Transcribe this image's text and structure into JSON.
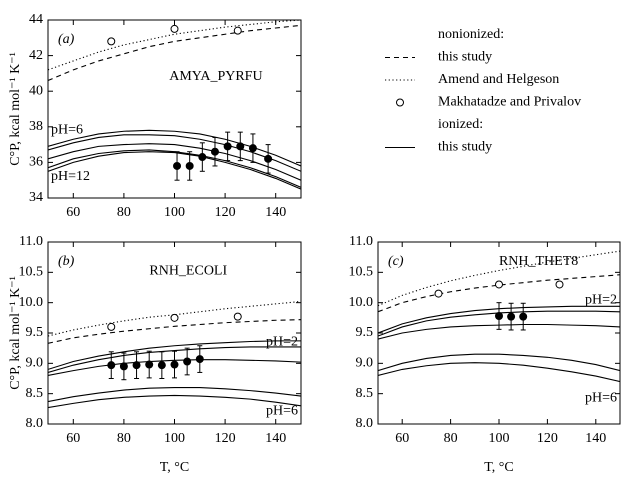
{
  "chart_data": [
    {
      "type": "line",
      "panel_label": "(a)",
      "annotations": [
        "AMYA_PYRFU",
        "pH=6",
        "pH=12"
      ],
      "ylabel": "C°P, kcal mol⁻¹ K⁻¹",
      "xlim": [
        50,
        150
      ],
      "xticks": [
        60,
        80,
        100,
        120,
        140
      ],
      "ylim": [
        34,
        44
      ],
      "yticks": [
        34,
        36,
        38,
        40,
        42,
        44
      ],
      "series": [
        {
          "style": "dotted",
          "x": [
            50,
            60,
            70,
            80,
            90,
            100,
            110,
            120,
            130,
            140,
            150
          ],
          "values": [
            41.2,
            41.7,
            42.2,
            42.6,
            42.9,
            43.2,
            43.4,
            43.6,
            43.75,
            43.9,
            44.0
          ]
        },
        {
          "style": "dashed",
          "x": [
            50,
            60,
            70,
            80,
            90,
            100,
            110,
            120,
            130,
            140,
            150
          ],
          "values": [
            40.6,
            41.2,
            41.7,
            42.1,
            42.5,
            42.8,
            43.0,
            43.2,
            43.4,
            43.55,
            43.7
          ]
        },
        {
          "style": "open",
          "x": [
            75,
            100,
            125
          ],
          "values": [
            42.8,
            43.5,
            43.4
          ]
        },
        {
          "style": "solid",
          "x": [
            50,
            60,
            70,
            80,
            90,
            100,
            110,
            120,
            130,
            140,
            150
          ],
          "values": [
            36.9,
            37.3,
            37.6,
            37.75,
            37.8,
            37.75,
            37.6,
            37.3,
            36.9,
            36.4,
            35.8
          ]
        },
        {
          "style": "solid",
          "x": [
            50,
            60,
            70,
            80,
            90,
            100,
            110,
            120,
            130,
            140,
            150
          ],
          "values": [
            36.7,
            37.1,
            37.4,
            37.55,
            37.55,
            37.5,
            37.3,
            37.0,
            36.6,
            36.1,
            35.5
          ]
        },
        {
          "style": "solid",
          "x": [
            50,
            60,
            70,
            80,
            90,
            100,
            110,
            120,
            130,
            140,
            150
          ],
          "values": [
            36.2,
            36.6,
            36.9,
            37.0,
            37.05,
            37.0,
            36.8,
            36.5,
            36.1,
            35.6,
            35.0
          ]
        },
        {
          "style": "solid",
          "x": [
            50,
            60,
            70,
            80,
            90,
            100,
            110,
            120,
            130,
            140,
            150
          ],
          "values": [
            35.7,
            36.2,
            36.5,
            36.65,
            36.7,
            36.6,
            36.4,
            36.1,
            35.7,
            35.2,
            34.6
          ]
        },
        {
          "style": "solid",
          "x": [
            50,
            60,
            70,
            80,
            90,
            100,
            110,
            120,
            130,
            140,
            150
          ],
          "values": [
            35.5,
            36.0,
            36.35,
            36.55,
            36.6,
            36.55,
            36.35,
            36.0,
            35.6,
            35.1,
            34.5
          ]
        },
        {
          "style": "filled",
          "x": [
            101,
            106,
            111,
            116,
            121,
            126,
            131,
            137
          ],
          "values": [
            35.8,
            35.8,
            36.3,
            36.6,
            36.9,
            36.9,
            36.8,
            36.2
          ],
          "errors": [
            0.8,
            0.8,
            0.8,
            0.8,
            0.8,
            0.8,
            0.8,
            0.8
          ]
        }
      ]
    },
    {
      "type": "line",
      "panel_label": "(b)",
      "annotations": [
        "RNH_ECOLI",
        "pH=2",
        "pH=6"
      ],
      "ylabel": "C°P, kcal mol⁻¹ K⁻¹",
      "xlabel": "T, °C",
      "xlim": [
        50,
        150
      ],
      "xticks": [
        60,
        80,
        100,
        120,
        140
      ],
      "ylim": [
        8,
        11
      ],
      "yticks": [
        {
          "value": 8,
          "label": "8.0"
        },
        {
          "value": 8.5,
          "label": "8.5"
        },
        {
          "value": 9,
          "label": "9.0"
        },
        {
          "value": 9.5,
          "label": "9.5"
        },
        {
          "value": 10,
          "label": "10.0"
        },
        {
          "value": 10.5,
          "label": "10.5"
        },
        {
          "value": 11,
          "label": "11.0"
        }
      ],
      "series": [
        {
          "style": "dotted",
          "x": [
            50,
            60,
            70,
            80,
            90,
            100,
            110,
            120,
            130,
            140,
            150
          ],
          "values": [
            9.45,
            9.55,
            9.63,
            9.7,
            9.76,
            9.8,
            9.85,
            9.9,
            9.94,
            9.98,
            10.02
          ]
        },
        {
          "style": "dashed",
          "x": [
            50,
            60,
            70,
            80,
            90,
            100,
            110,
            120,
            130,
            140,
            150
          ],
          "values": [
            9.33,
            9.42,
            9.48,
            9.53,
            9.57,
            9.61,
            9.64,
            9.67,
            9.69,
            9.71,
            9.72
          ]
        },
        {
          "style": "open",
          "x": [
            75,
            100,
            125
          ],
          "values": [
            9.6,
            9.75,
            9.77
          ]
        },
        {
          "style": "solid",
          "x": [
            50,
            60,
            70,
            80,
            90,
            100,
            110,
            120,
            130,
            140,
            150
          ],
          "values": [
            8.9,
            9.03,
            9.12,
            9.19,
            9.25,
            9.29,
            9.32,
            9.34,
            9.36,
            9.37,
            9.37
          ]
        },
        {
          "style": "solid",
          "x": [
            50,
            60,
            70,
            80,
            90,
            100,
            110,
            120,
            130,
            140,
            150
          ],
          "values": [
            8.85,
            8.97,
            9.06,
            9.13,
            9.18,
            9.21,
            9.24,
            9.26,
            9.27,
            9.27,
            9.27
          ]
        },
        {
          "style": "solid",
          "x": [
            50,
            60,
            70,
            80,
            90,
            100,
            110,
            120,
            130,
            140,
            150
          ],
          "values": [
            8.8,
            8.88,
            8.95,
            9.0,
            9.03,
            9.05,
            9.06,
            9.06,
            9.05,
            9.04,
            9.02
          ]
        },
        {
          "style": "solid",
          "x": [
            50,
            60,
            70,
            80,
            90,
            100,
            110,
            120,
            130,
            140,
            150
          ],
          "values": [
            8.37,
            8.45,
            8.51,
            8.56,
            8.59,
            8.6,
            8.6,
            8.58,
            8.55,
            8.51,
            8.46
          ]
        },
        {
          "style": "solid",
          "x": [
            50,
            60,
            70,
            80,
            90,
            100,
            110,
            120,
            130,
            140,
            150
          ],
          "values": [
            8.27,
            8.34,
            8.4,
            8.44,
            8.46,
            8.47,
            8.46,
            8.44,
            8.41,
            8.36,
            8.3
          ]
        },
        {
          "style": "filled",
          "x": [
            75,
            80,
            85,
            90,
            95,
            100,
            105,
            110
          ],
          "values": [
            8.97,
            8.95,
            8.97,
            8.98,
            8.97,
            8.98,
            9.03,
            9.07
          ],
          "errors": [
            0.22,
            0.22,
            0.22,
            0.22,
            0.22,
            0.22,
            0.22,
            0.22
          ]
        }
      ]
    },
    {
      "type": "line",
      "panel_label": "(c)",
      "annotations": [
        "RNH_THET8",
        "pH=2",
        "pH=6"
      ],
      "xlabel": "T, °C",
      "xlim": [
        50,
        150
      ],
      "xticks": [
        60,
        80,
        100,
        120,
        140
      ],
      "ylim": [
        8,
        11
      ],
      "yticks": [
        {
          "value": 8,
          "label": "8.0"
        },
        {
          "value": 8.5,
          "label": "8.5"
        },
        {
          "value": 9,
          "label": "9.0"
        },
        {
          "value": 9.5,
          "label": "9.5"
        },
        {
          "value": 10,
          "label": "10.0"
        },
        {
          "value": 10.5,
          "label": "10.5"
        },
        {
          "value": 11,
          "label": "11.0"
        }
      ],
      "series": [
        {
          "style": "dotted",
          "x": [
            50,
            60,
            70,
            80,
            90,
            100,
            110,
            120,
            130,
            140,
            150
          ],
          "values": [
            9.95,
            10.12,
            10.25,
            10.36,
            10.45,
            10.53,
            10.6,
            10.67,
            10.73,
            10.79,
            10.85
          ]
        },
        {
          "style": "dashed",
          "x": [
            50,
            60,
            70,
            80,
            90,
            100,
            110,
            120,
            130,
            140,
            150
          ],
          "values": [
            9.85,
            10.0,
            10.1,
            10.18,
            10.24,
            10.29,
            10.33,
            10.37,
            10.4,
            10.43,
            10.46
          ]
        },
        {
          "style": "open",
          "x": [
            75,
            100,
            125
          ],
          "values": [
            10.15,
            10.3,
            10.3
          ]
        },
        {
          "style": "solid",
          "x": [
            50,
            60,
            70,
            80,
            90,
            100,
            110,
            120,
            130,
            140,
            150
          ],
          "values": [
            9.5,
            9.65,
            9.75,
            9.82,
            9.87,
            9.9,
            9.92,
            9.93,
            9.94,
            9.94,
            9.94
          ]
        },
        {
          "style": "solid",
          "x": [
            50,
            60,
            70,
            80,
            90,
            100,
            110,
            120,
            130,
            140,
            150
          ],
          "values": [
            9.45,
            9.6,
            9.7,
            9.76,
            9.8,
            9.83,
            9.85,
            9.86,
            9.86,
            9.86,
            9.85
          ]
        },
        {
          "style": "solid",
          "x": [
            50,
            60,
            70,
            80,
            90,
            100,
            110,
            120,
            130,
            140,
            150
          ],
          "values": [
            9.4,
            9.5,
            9.56,
            9.6,
            9.62,
            9.63,
            9.64,
            9.64,
            9.63,
            9.62,
            9.6
          ]
        },
        {
          "style": "solid",
          "x": [
            50,
            60,
            70,
            80,
            90,
            100,
            110,
            120,
            130,
            140,
            150
          ],
          "values": [
            8.88,
            9.0,
            9.08,
            9.13,
            9.15,
            9.15,
            9.13,
            9.1,
            9.05,
            8.98,
            8.88
          ]
        },
        {
          "style": "solid",
          "x": [
            50,
            60,
            70,
            80,
            90,
            100,
            110,
            120,
            130,
            140,
            150
          ],
          "values": [
            8.8,
            8.9,
            8.96,
            9.0,
            9.01,
            9.0,
            8.97,
            8.92,
            8.86,
            8.79,
            8.7
          ]
        },
        {
          "style": "filled",
          "x": [
            100,
            105,
            110
          ],
          "values": [
            9.78,
            9.77,
            9.77
          ],
          "errors": [
            0.22,
            0.22,
            0.22
          ]
        }
      ]
    }
  ],
  "legend": {
    "groups": [
      {
        "title": "nonionized:",
        "entries": [
          {
            "label": "this study",
            "style": "dashed"
          },
          {
            "label": "Amend and Helgeson",
            "style": "dotted"
          },
          {
            "label": "Makhatadze and Privalov",
            "style": "open"
          }
        ]
      },
      {
        "title": "ionized:",
        "entries": [
          {
            "label": "this study",
            "style": "solid"
          }
        ]
      }
    ]
  }
}
